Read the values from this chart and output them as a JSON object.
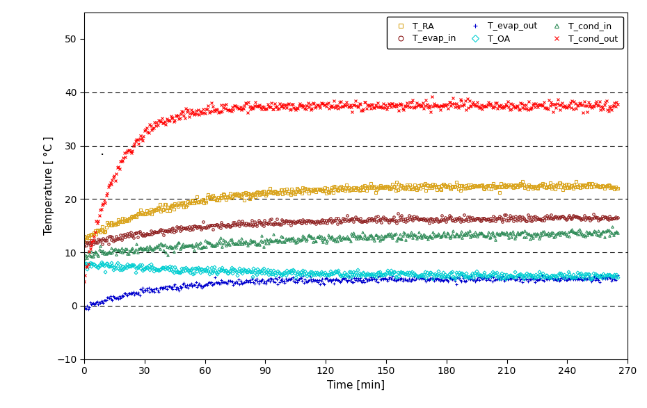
{
  "xlabel": "Time [min]",
  "ylabel": "Temperature [°C]",
  "xlim": [
    0,
    270
  ],
  "ylim": [
    -10,
    55
  ],
  "yticks": [
    -10,
    0,
    10,
    20,
    30,
    40,
    50
  ],
  "xticks": [
    0,
    30,
    60,
    90,
    120,
    150,
    180,
    210,
    240,
    270
  ],
  "series": {
    "T_RA": {
      "color": "#DAA520",
      "marker": "s",
      "markersize": 2.5,
      "final_value": 22.5,
      "start_value": 12.5,
      "rise_speed": 0.022,
      "noise": 0.35,
      "seed": 10
    },
    "T_OA": {
      "color": "#00CED1",
      "marker": "D",
      "markersize": 2.5,
      "final_value": 5.5,
      "start_value": 7.8,
      "rise_speed": 0.012,
      "noise": 0.35,
      "seed": 20,
      "decreasing": true
    },
    "T_evap_in": {
      "color": "#8B1A1A",
      "marker": "o",
      "markersize": 2.5,
      "final_value": 16.5,
      "start_value": 11.5,
      "rise_speed": 0.018,
      "noise": 0.3,
      "seed": 30
    },
    "T_evap_out": {
      "color": "#0000CD",
      "marker": "+",
      "markersize": 2.5,
      "final_value": 5.0,
      "start_value": -0.5,
      "rise_speed": 0.03,
      "noise": 0.3,
      "seed": 40
    },
    "T_cond_in": {
      "color": "#2E8B57",
      "marker": "^",
      "markersize": 2.5,
      "final_value": 14.0,
      "start_value": 9.5,
      "rise_speed": 0.01,
      "noise": 0.4,
      "seed": 50
    },
    "T_cond_out": {
      "color": "#FF0000",
      "marker": "x",
      "markersize": 2.5,
      "final_value": 37.5,
      "start_value": 5.0,
      "rise_speed": 0.06,
      "noise": 0.45,
      "seed": 60
    }
  },
  "legend_order": [
    "T_RA",
    "T_evap_in",
    "T_evap_out",
    "T_OA",
    "T_cond_in",
    "T_cond_out"
  ],
  "background_color": "#ffffff",
  "open_face_markers": [
    "s",
    "D",
    "o",
    "^"
  ],
  "n_points": 530,
  "t_max": 265
}
